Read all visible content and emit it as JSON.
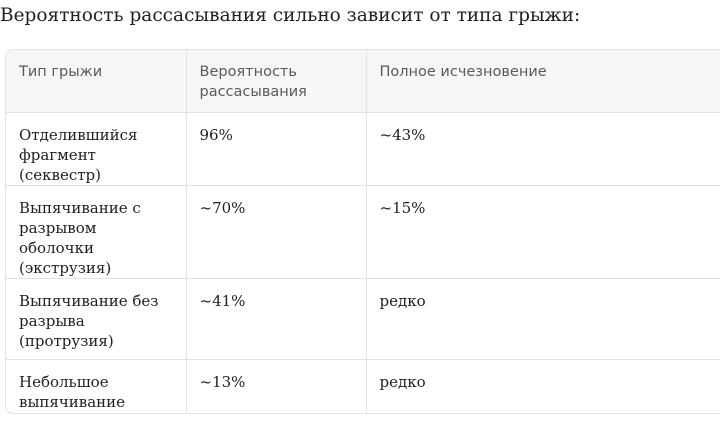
{
  "intro_text": "Вероятность рассасывания сильно зависит от типа грыжи:",
  "table": {
    "headers": [
      "Тип грыжи",
      "Вероятность рассасывания",
      "Полное исчезновение"
    ],
    "rows": [
      [
        "Отделившийся фрагмент (секвестр)",
        "96%",
        "~43%"
      ],
      [
        "Выпячивание с разрывом оболочки (экструзия)",
        "~70%",
        "~15%"
      ],
      [
        "Выпячивание без разрыва (протрузия)",
        "~41%",
        "редко"
      ],
      [
        "Небольшое выпячивание (bulging)",
        "~13%",
        "редко"
      ]
    ]
  }
}
